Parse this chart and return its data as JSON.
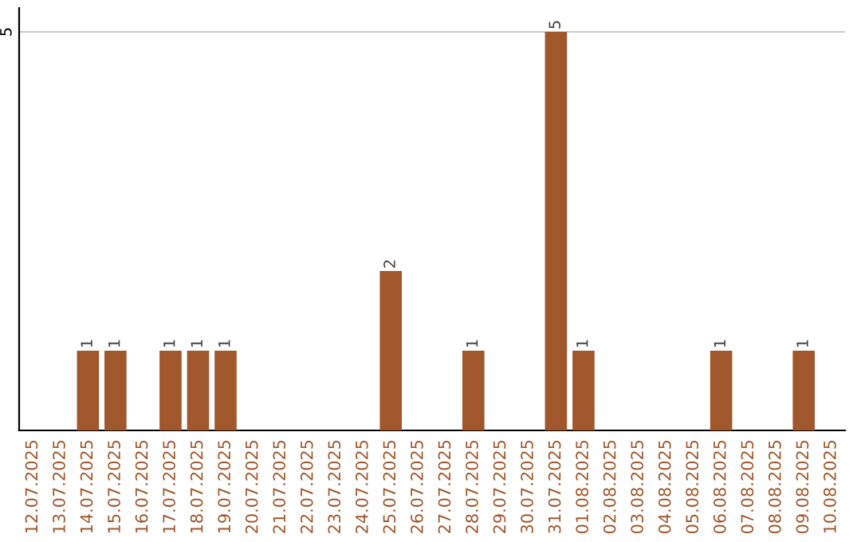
{
  "chart_data": {
    "type": "bar",
    "categories": [
      "12.07.2025",
      "13.07.2025",
      "14.07.2025",
      "15.07.2025",
      "16.07.2025",
      "17.07.2025",
      "18.07.2025",
      "19.07.2025",
      "20.07.2025",
      "21.07.2025",
      "22.07.2025",
      "23.07.2025",
      "24.07.2025",
      "25.07.2025",
      "26.07.2025",
      "27.07.2025",
      "28.07.2025",
      "29.07.2025",
      "30.07.2025",
      "31.07.2025",
      "01.08.2025",
      "02.08.2025",
      "03.08.2025",
      "04.08.2025",
      "05.08.2025",
      "06.08.2025",
      "07.08.2025",
      "08.08.2025",
      "09.08.2025",
      "10.08.2025"
    ],
    "values": [
      0,
      0,
      1,
      1,
      0,
      1,
      1,
      1,
      0,
      0,
      0,
      0,
      0,
      2,
      0,
      0,
      1,
      0,
      0,
      5,
      1,
      0,
      0,
      0,
      0,
      1,
      0,
      0,
      1,
      0
    ],
    "value_labels": [
      null,
      null,
      "1",
      "1",
      null,
      "1",
      "1",
      "1",
      null,
      null,
      null,
      null,
      null,
      "2",
      null,
      null,
      "1",
      null,
      null,
      "5",
      "1",
      null,
      null,
      null,
      null,
      "1",
      null,
      null,
      "1",
      null
    ],
    "color": "#a0572b",
    "ylim": [
      0,
      5.3
    ],
    "yticks": [
      5
    ],
    "grid": "y",
    "legend": false
  }
}
